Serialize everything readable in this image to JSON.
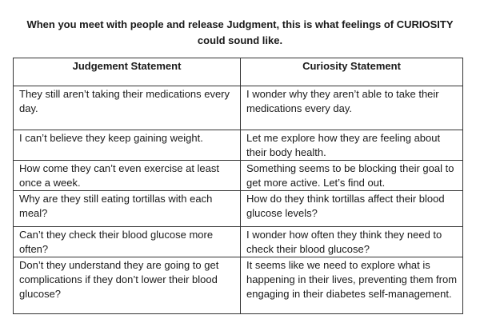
{
  "title_line1": "When you meet with people and release Judgment, this is what feelings of CURIOSITY",
  "title_line2": "could sound like.",
  "table": {
    "headers": [
      "Judgement Statement",
      "Curiosity Statement"
    ],
    "rows": [
      [
        "They still aren’t taking their medications every day.",
        "I wonder why they aren’t able to take their medications every day."
      ],
      [
        "I can’t believe they keep gaining weight.",
        "Let me explore how they are feeling about their body health."
      ],
      [
        "How come they can’t even exercise at least once a week.",
        "Something seems to be blocking their goal to get more active. Let’s find out."
      ],
      [
        "Why are they still eating tortillas with each meal?",
        "How do they think tortillas affect their blood glucose levels?"
      ],
      [
        "Can’t they check their blood glucose more often?",
        "I wonder how often they think they need to check their blood glucose?"
      ],
      [
        "Don’t they understand they are going to get complications if they don’t lower their blood glucose?",
        "It seems like we need to explore what is happening in their lives, preventing them from engaging in their diabetes self-management."
      ]
    ]
  }
}
